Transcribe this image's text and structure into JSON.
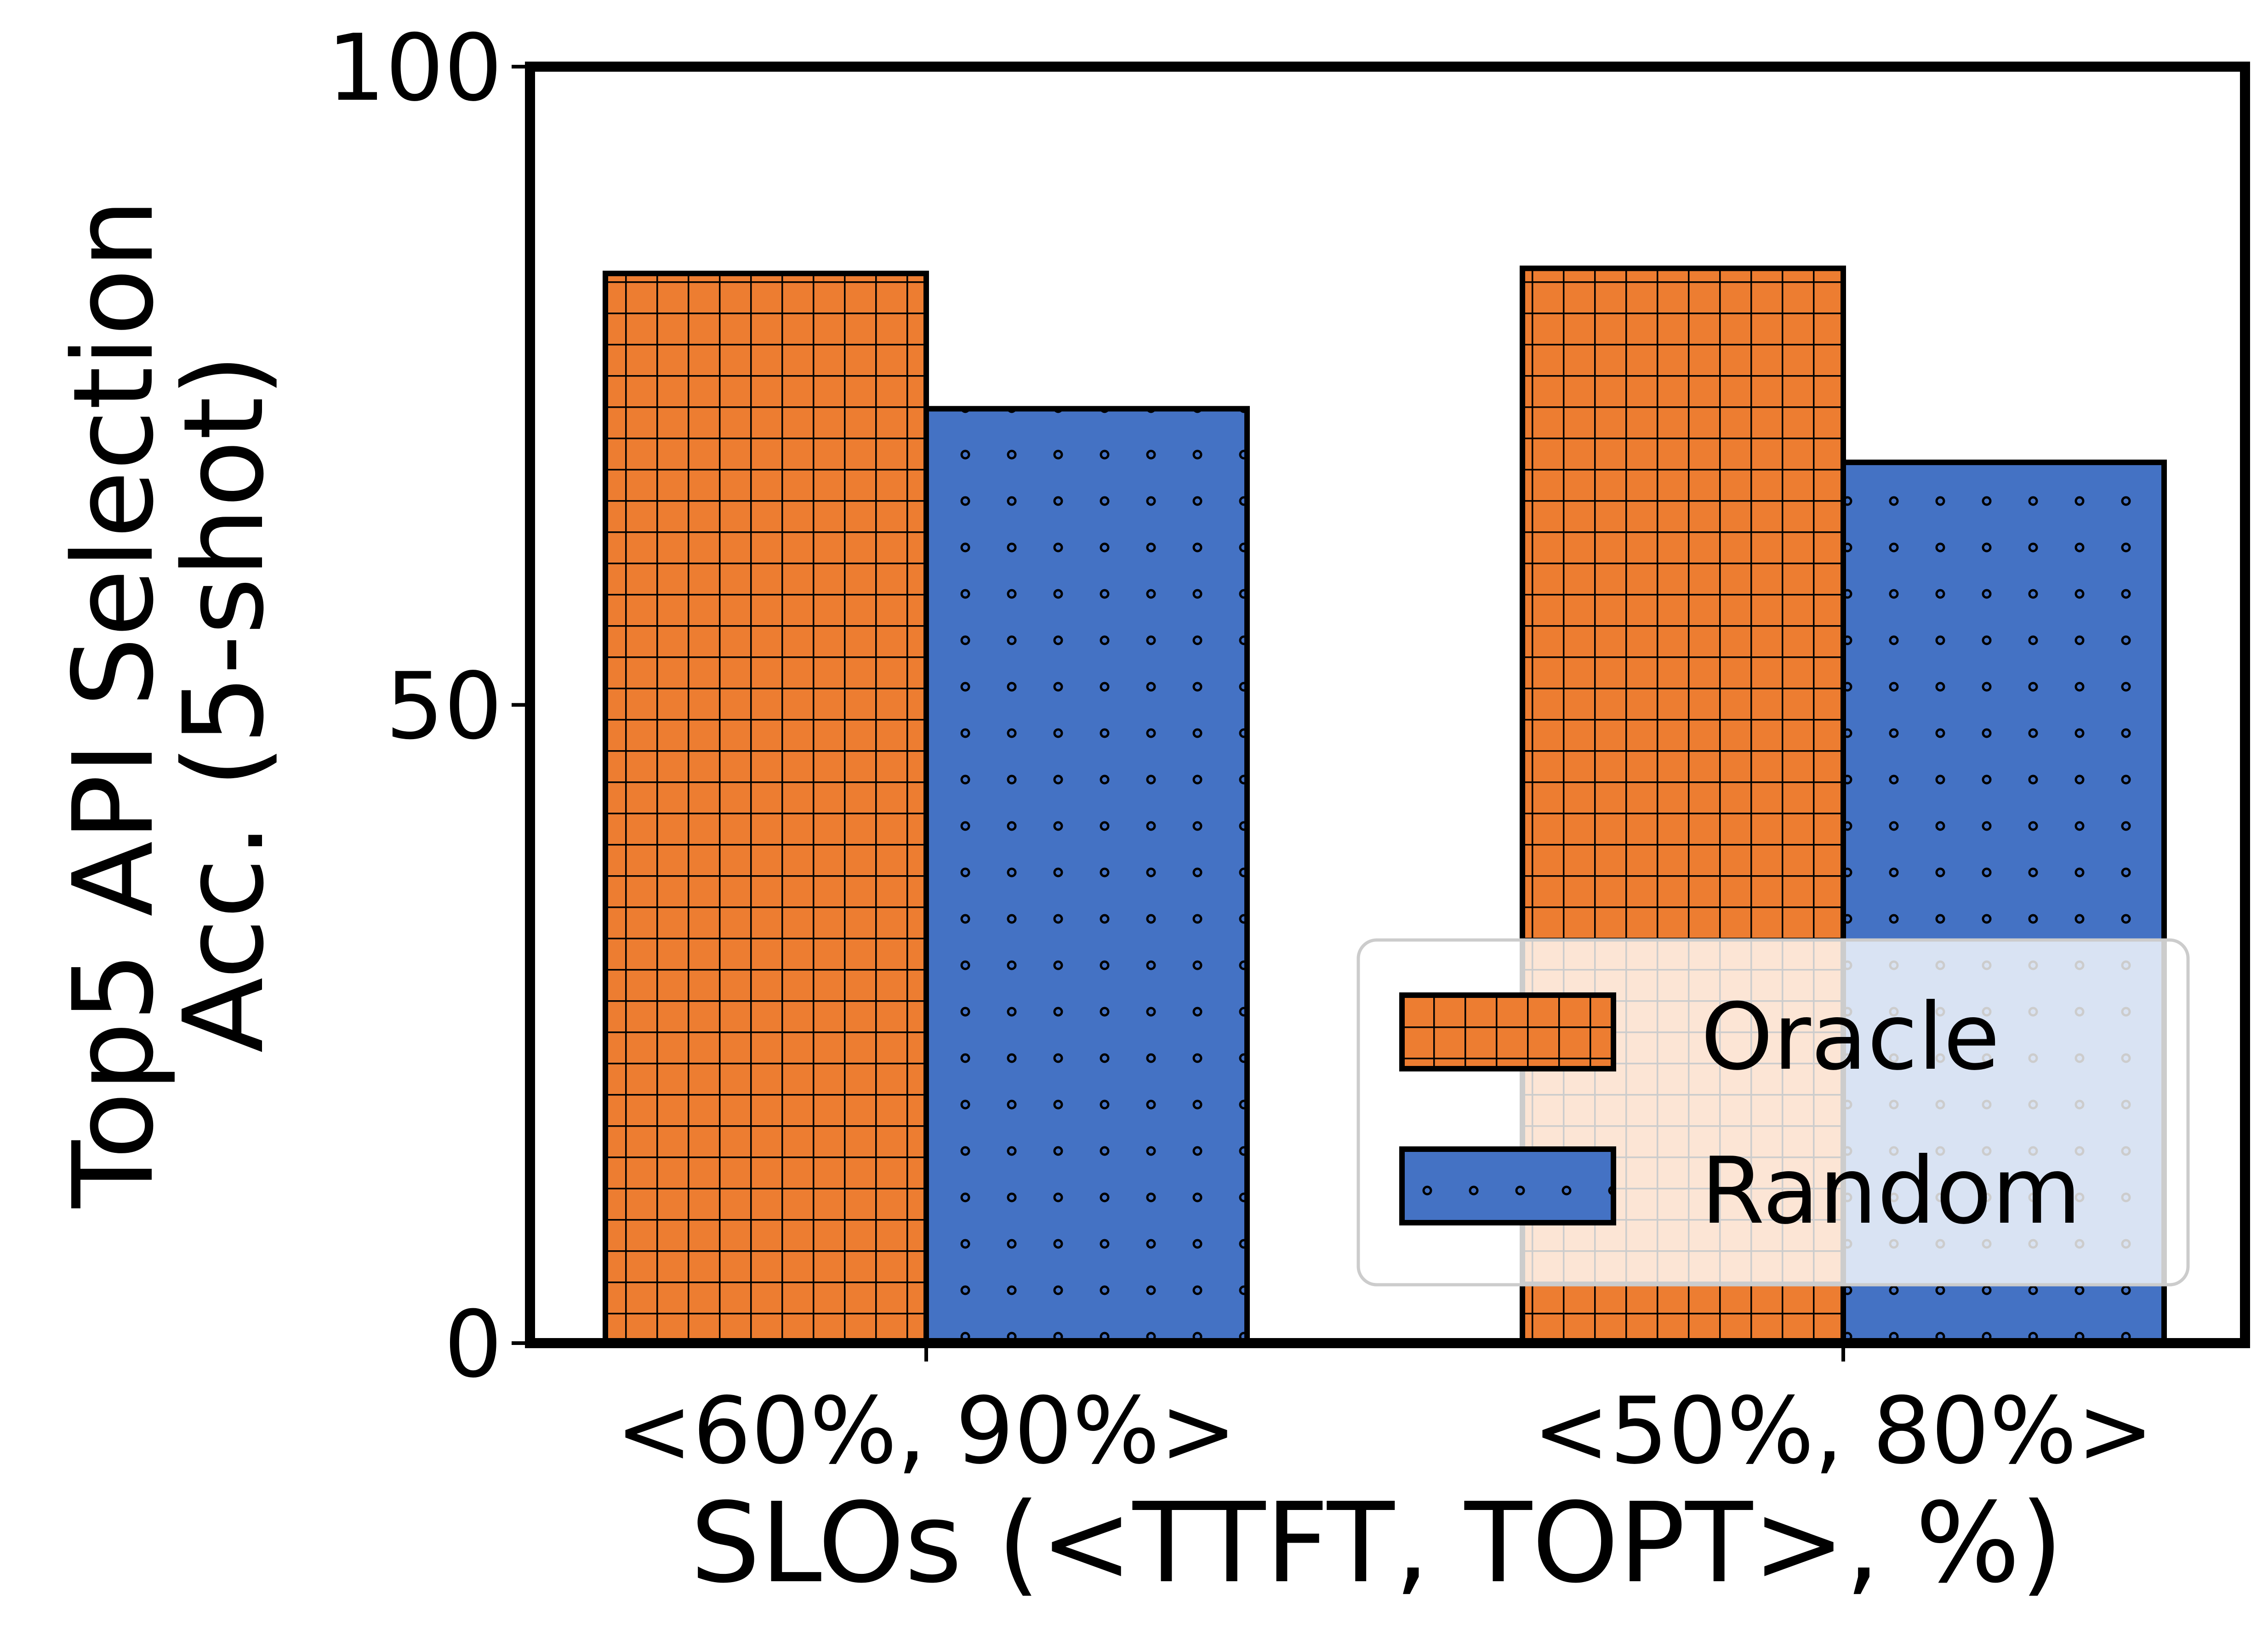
{
  "chart_data": {
    "type": "bar",
    "categories": [
      "<60%, 90%>",
      "<50%, 80%>"
    ],
    "series": [
      {
        "name": "Oracle",
        "values": [
          83.8,
          84.2
        ],
        "color": "#ED7D31",
        "hatch": "grid"
      },
      {
        "name": "Random",
        "values": [
          73.2,
          69.0
        ],
        "color": "#4472C4",
        "hatch": "dots"
      }
    ],
    "xlabel": "SLOs (<TTFT, TOPT>, %)",
    "ylabel_lines": [
      "Top5 API Selection",
      "Acc. (5-shot)"
    ],
    "ylim": [
      0,
      100
    ],
    "yticks": [
      "0",
      "50",
      "100"
    ],
    "grid": false,
    "legend_position": "lower right"
  }
}
